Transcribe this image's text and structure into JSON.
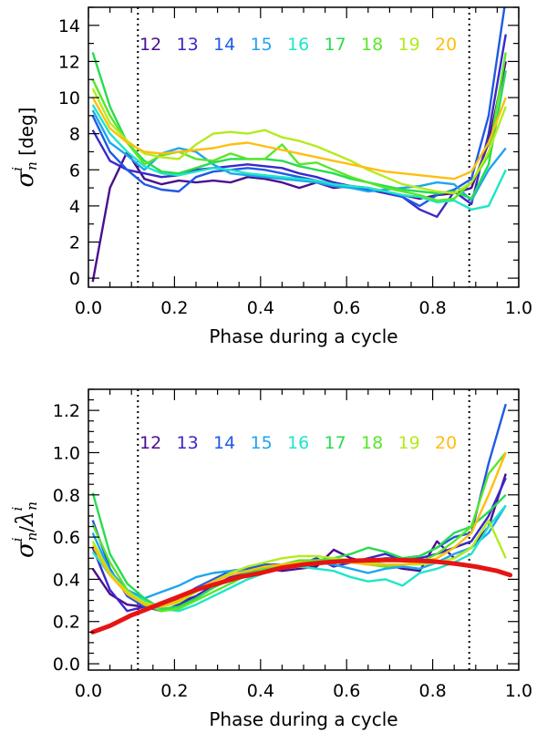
{
  "chart_data": [
    {
      "type": "line",
      "xlabel": "Phase during a cycle",
      "ylabel": {
        "symbol": "σ",
        "superscript": "i",
        "subscript": "n",
        "unit": "[deg]"
      },
      "xlim": [
        0.0,
        1.0
      ],
      "ylim": [
        -0.5,
        15
      ],
      "xticks": [
        0.0,
        0.2,
        0.4,
        0.6,
        0.8,
        1.0
      ],
      "xtick_labels": [
        "0.0",
        "0.2",
        "0.4",
        "0.6",
        "0.8",
        "1.0"
      ],
      "yticks": [
        0,
        2,
        4,
        6,
        8,
        10,
        12,
        14
      ],
      "ytick_labels": [
        "0",
        "2",
        "4",
        "6",
        "8",
        "10",
        "12",
        "14"
      ],
      "vlines": [
        0.115,
        0.885
      ],
      "grid": false,
      "legend_position": "top",
      "x": [
        0.01,
        0.05,
        0.09,
        0.13,
        0.17,
        0.21,
        0.25,
        0.29,
        0.33,
        0.37,
        0.41,
        0.45,
        0.49,
        0.53,
        0.57,
        0.61,
        0.65,
        0.69,
        0.73,
        0.77,
        0.81,
        0.85,
        0.89,
        0.93,
        0.97
      ],
      "series": [
        {
          "name": "12",
          "color": "#4b0f8e",
          "values": [
            -0.2,
            5.0,
            7.0,
            5.5,
            5.2,
            5.4,
            5.3,
            5.4,
            5.3,
            5.6,
            5.5,
            5.3,
            5.0,
            5.3,
            5.0,
            5.1,
            5.0,
            4.8,
            4.6,
            4.4,
            4.6,
            4.7,
            5.0,
            7.5,
            12.0
          ]
        },
        {
          "name": "13",
          "color": "#3c28c8",
          "values": [
            8.2,
            6.5,
            6.0,
            5.8,
            5.6,
            5.7,
            6.0,
            6.1,
            6.2,
            6.3,
            6.2,
            6.1,
            5.8,
            5.6,
            5.3,
            5.1,
            4.9,
            4.7,
            4.5,
            3.8,
            3.4,
            4.8,
            4.1,
            8.0,
            13.5
          ]
        },
        {
          "name": "14",
          "color": "#1e5ae6",
          "values": [
            9.0,
            7.0,
            6.0,
            5.2,
            4.9,
            4.8,
            5.6,
            5.9,
            6.0,
            6.1,
            6.0,
            5.8,
            5.6,
            5.4,
            5.2,
            5.0,
            4.9,
            4.8,
            4.5,
            4.0,
            4.6,
            4.9,
            5.5,
            9.0,
            15.5
          ]
        },
        {
          "name": "15",
          "color": "#1ea5f0",
          "values": [
            9.3,
            7.5,
            6.8,
            6.0,
            6.9,
            7.2,
            7.0,
            6.3,
            5.8,
            5.7,
            5.6,
            5.5,
            5.4,
            5.3,
            5.1,
            5.0,
            4.8,
            4.9,
            5.0,
            5.1,
            5.3,
            5.2,
            4.3,
            6.0,
            7.2
          ]
        },
        {
          "name": "16",
          "color": "#1ee6c8",
          "values": [
            9.6,
            8.0,
            7.0,
            6.2,
            5.8,
            5.7,
            5.9,
            6.1,
            6.0,
            5.8,
            5.7,
            5.6,
            5.5,
            5.4,
            5.2,
            5.1,
            5.0,
            4.8,
            4.6,
            4.5,
            4.2,
            4.3,
            3.8,
            4.0,
            6.0
          ]
        },
        {
          "name": "17",
          "color": "#28dc50",
          "values": [
            12.5,
            9.5,
            7.5,
            6.5,
            5.9,
            5.8,
            6.1,
            6.4,
            6.6,
            6.6,
            6.6,
            6.5,
            6.2,
            6.0,
            5.8,
            5.5,
            5.3,
            5.1,
            4.9,
            4.8,
            4.7,
            4.8,
            4.4,
            6.3,
            11.5
          ]
        },
        {
          "name": "18",
          "color": "#5ae628",
          "values": [
            11.0,
            9.0,
            7.5,
            6.3,
            6.8,
            7.0,
            6.6,
            6.5,
            6.9,
            6.6,
            6.6,
            7.4,
            6.3,
            6.4,
            6.0,
            5.6,
            5.3,
            5.0,
            4.8,
            4.6,
            4.3,
            4.4,
            5.3,
            6.8,
            12.5
          ]
        },
        {
          "name": "19",
          "color": "#b4eb1e",
          "values": [
            10.5,
            8.6,
            7.6,
            6.9,
            6.7,
            6.6,
            7.4,
            8.0,
            8.1,
            8.0,
            8.2,
            7.8,
            7.6,
            7.3,
            6.9,
            6.5,
            6.0,
            5.6,
            5.2,
            5.0,
            4.8,
            4.7,
            5.3,
            7.0,
            9.5
          ]
        },
        {
          "name": "20",
          "color": "#ffbe0f",
          "values": [
            10.0,
            8.3,
            7.5,
            7.0,
            6.9,
            7.0,
            7.1,
            7.2,
            7.4,
            7.5,
            7.3,
            7.1,
            6.9,
            6.7,
            6.5,
            6.3,
            6.1,
            5.9,
            5.8,
            5.7,
            5.6,
            5.5,
            5.9,
            7.5,
            10.0
          ]
        }
      ]
    },
    {
      "type": "line",
      "xlabel": "Phase during a cycle",
      "ylabel": {
        "symbol": "σ",
        "superscript": "i",
        "subscript": "n",
        "symbol2": "λ",
        "superscript2": "i",
        "subscript2": "n"
      },
      "xlim": [
        0.0,
        1.0
      ],
      "ylim": [
        -0.03,
        1.3
      ],
      "xticks": [
        0.0,
        0.2,
        0.4,
        0.6,
        0.8,
        1.0
      ],
      "xtick_labels": [
        "0.0",
        "0.2",
        "0.4",
        "0.6",
        "0.8",
        "1.0"
      ],
      "yticks": [
        0.0,
        0.2,
        0.4,
        0.6,
        0.8,
        1.0,
        1.2
      ],
      "ytick_labels": [
        "0.0",
        "0.2",
        "0.4",
        "0.6",
        "0.8",
        "1.0",
        "1.2"
      ],
      "vlines": [
        0.115,
        0.885
      ],
      "grid": false,
      "legend_position": "top",
      "x": [
        0.01,
        0.05,
        0.09,
        0.13,
        0.17,
        0.21,
        0.25,
        0.29,
        0.33,
        0.37,
        0.41,
        0.45,
        0.49,
        0.53,
        0.57,
        0.61,
        0.65,
        0.69,
        0.73,
        0.77,
        0.81,
        0.85,
        0.89,
        0.93,
        0.97
      ],
      "series": [
        {
          "name": "12",
          "color": "#4b0f8e",
          "values": [
            0.45,
            0.33,
            0.28,
            0.27,
            0.28,
            0.29,
            0.32,
            0.37,
            0.4,
            0.42,
            0.45,
            0.44,
            0.45,
            0.46,
            0.54,
            0.5,
            0.48,
            0.47,
            0.45,
            0.44,
            0.58,
            0.5,
            0.55,
            0.65,
            0.9
          ]
        },
        {
          "name": "13",
          "color": "#3c28c8",
          "values": [
            0.55,
            0.35,
            0.25,
            0.27,
            0.25,
            0.28,
            0.32,
            0.37,
            0.41,
            0.44,
            0.46,
            0.45,
            0.47,
            0.5,
            0.46,
            0.48,
            0.5,
            0.52,
            0.49,
            0.5,
            0.52,
            0.55,
            0.58,
            0.7,
            0.88
          ]
        },
        {
          "name": "14",
          "color": "#1e5ae6",
          "values": [
            0.68,
            0.45,
            0.32,
            0.27,
            0.27,
            0.31,
            0.36,
            0.4,
            0.44,
            0.45,
            0.47,
            0.47,
            0.48,
            0.48,
            0.48,
            0.49,
            0.49,
            0.5,
            0.5,
            0.51,
            0.55,
            0.6,
            0.62,
            0.95,
            1.23
          ]
        },
        {
          "name": "15",
          "color": "#1ea5f0",
          "values": [
            0.62,
            0.44,
            0.35,
            0.31,
            0.34,
            0.37,
            0.41,
            0.43,
            0.44,
            0.44,
            0.46,
            0.47,
            0.47,
            0.48,
            0.47,
            0.45,
            0.43,
            0.45,
            0.46,
            0.45,
            0.48,
            0.52,
            0.55,
            0.62,
            0.75
          ]
        },
        {
          "name": "16",
          "color": "#1ee6c8",
          "values": [
            0.53,
            0.42,
            0.34,
            0.3,
            0.26,
            0.25,
            0.28,
            0.32,
            0.36,
            0.4,
            0.43,
            0.45,
            0.46,
            0.45,
            0.44,
            0.41,
            0.39,
            0.4,
            0.37,
            0.43,
            0.45,
            0.48,
            0.52,
            0.65,
            0.75
          ]
        },
        {
          "name": "17",
          "color": "#28dc50",
          "values": [
            0.81,
            0.52,
            0.38,
            0.31,
            0.26,
            0.27,
            0.31,
            0.36,
            0.4,
            0.43,
            0.45,
            0.47,
            0.48,
            0.49,
            0.5,
            0.52,
            0.55,
            0.53,
            0.5,
            0.51,
            0.55,
            0.62,
            0.65,
            0.72,
            0.8
          ]
        },
        {
          "name": "18",
          "color": "#5ae628",
          "values": [
            0.66,
            0.48,
            0.35,
            0.28,
            0.25,
            0.26,
            0.3,
            0.34,
            0.38,
            0.42,
            0.45,
            0.47,
            0.49,
            0.49,
            0.49,
            0.48,
            0.47,
            0.46,
            0.47,
            0.48,
            0.52,
            0.58,
            0.65,
            0.9,
            1.0
          ]
        },
        {
          "name": "19",
          "color": "#b4eb1e",
          "values": [
            0.58,
            0.43,
            0.34,
            0.29,
            0.27,
            0.29,
            0.34,
            0.39,
            0.43,
            0.46,
            0.48,
            0.5,
            0.51,
            0.51,
            0.5,
            0.49,
            0.48,
            0.47,
            0.47,
            0.47,
            0.48,
            0.5,
            0.55,
            0.68,
            0.5
          ]
        },
        {
          "name": "20",
          "color": "#ffbe0f",
          "values": [
            0.56,
            0.42,
            0.33,
            0.28,
            0.27,
            0.3,
            0.35,
            0.39,
            0.42,
            0.44,
            0.46,
            0.47,
            0.48,
            0.48,
            0.48,
            0.48,
            0.47,
            0.47,
            0.47,
            0.48,
            0.5,
            0.55,
            0.62,
            0.8,
            1.0
          ]
        }
      ],
      "fit": {
        "color": "#e61414",
        "x": [
          0.01,
          0.05,
          0.1,
          0.15,
          0.2,
          0.25,
          0.3,
          0.35,
          0.4,
          0.45,
          0.5,
          0.55,
          0.6,
          0.65,
          0.7,
          0.75,
          0.8,
          0.85,
          0.9,
          0.95,
          0.98
        ],
        "values": [
          0.15,
          0.18,
          0.23,
          0.27,
          0.31,
          0.35,
          0.38,
          0.41,
          0.43,
          0.455,
          0.47,
          0.48,
          0.487,
          0.49,
          0.492,
          0.49,
          0.485,
          0.475,
          0.46,
          0.44,
          0.42
        ]
      }
    }
  ]
}
